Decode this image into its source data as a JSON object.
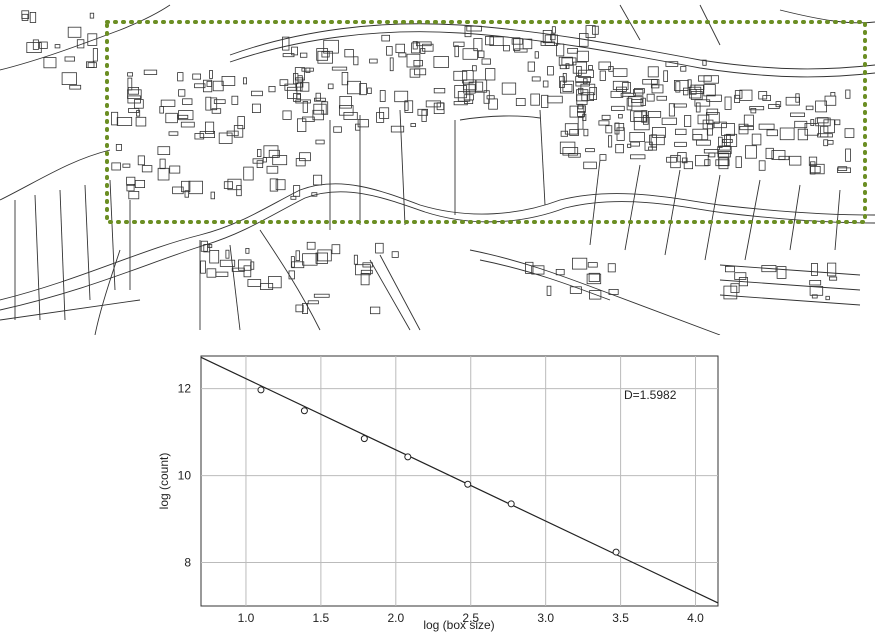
{
  "map": {
    "selection_color": "#6b8e23",
    "line_color": "#333333"
  },
  "chart_data": {
    "type": "scatter",
    "title": "",
    "xlabel": "log (box size)",
    "ylabel": "log (count)",
    "xlim": [
      0.7,
      4.15
    ],
    "ylim": [
      7.0,
      12.75
    ],
    "xticks": [
      1.0,
      1.5,
      2.0,
      2.5,
      3.0,
      3.5,
      4.0
    ],
    "xtick_labels": [
      "1.0",
      "1.5",
      "2.0",
      "2.5",
      "3.0",
      "3.5",
      "4.0"
    ],
    "yticks": [
      8,
      10,
      12
    ],
    "ytick_labels": [
      "8",
      "10",
      "12"
    ],
    "grid": true,
    "points": {
      "x": [
        1.1,
        1.39,
        1.79,
        2.08,
        2.48,
        2.77,
        3.47
      ],
      "y": [
        11.97,
        11.49,
        10.85,
        10.43,
        9.8,
        9.35,
        8.24
      ]
    },
    "fit_line": {
      "x": [
        0.7,
        4.15
      ],
      "y": [
        12.72,
        7.07
      ]
    },
    "annotation": "D=1.5982"
  }
}
